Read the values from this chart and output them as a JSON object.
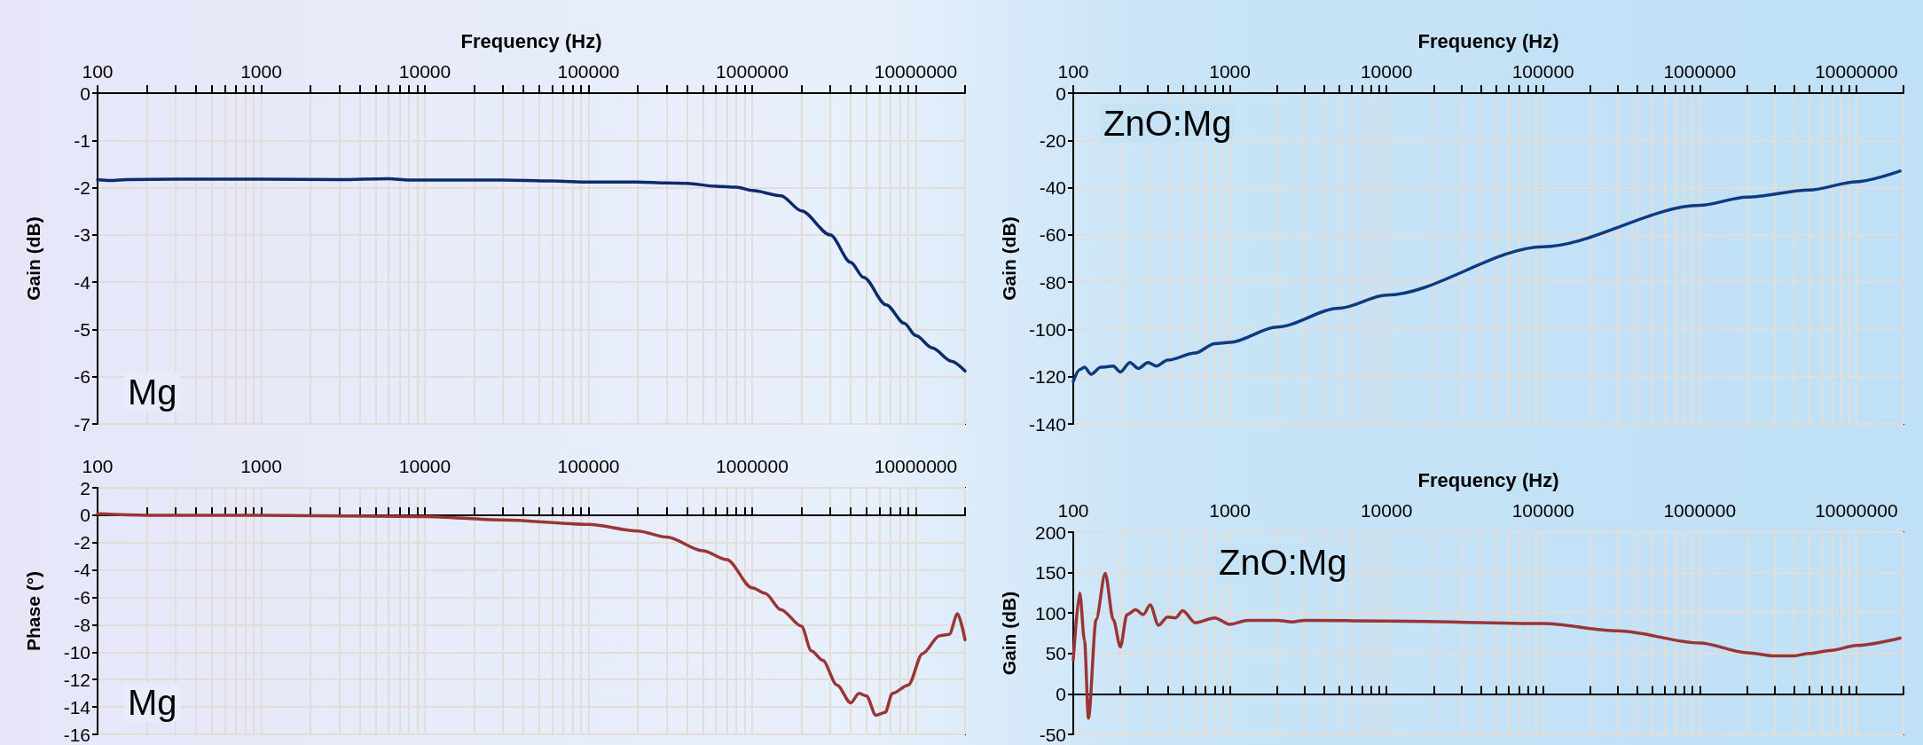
{
  "chart_data": [
    {
      "type": "line",
      "xlabel": "Frequency (Hz)",
      "ylabel": "Gain (dB)",
      "annotations": [
        "Mg"
      ],
      "log": "x",
      "grid": true,
      "xlim": [
        100,
        20000000
      ],
      "xticks": [
        100,
        1000,
        10000,
        100000,
        1000000,
        10000000
      ],
      "ylim": [
        -7,
        0
      ],
      "yticks": [
        -7,
        -6,
        -5,
        -4,
        -3,
        -2,
        -1,
        0
      ],
      "series": [
        {
          "color": "#0d2a6b",
          "x": [
            100,
            120,
            150,
            300,
            500,
            1000,
            3000,
            6000,
            8000,
            30000,
            60000,
            100000,
            200000,
            300000,
            400000,
            600000,
            800000,
            1000000,
            1500000,
            2000000,
            3000000,
            4000000,
            4800000,
            6600000,
            8500000,
            10000000,
            12600000,
            16500000,
            20000000
          ],
          "values": [
            -1.83,
            -1.85,
            -1.83,
            -1.82,
            -1.82,
            -1.82,
            -1.83,
            -1.81,
            -1.84,
            -1.84,
            -1.86,
            -1.88,
            -1.88,
            -1.9,
            -1.91,
            -1.97,
            -1.99,
            -2.06,
            -2.17,
            -2.49,
            -3.0,
            -3.58,
            -3.9,
            -4.48,
            -4.87,
            -5.13,
            -5.39,
            -5.67,
            -5.88
          ]
        }
      ]
    },
    {
      "type": "line",
      "ylabel": "Phase (°)",
      "annotations": [
        "Mg"
      ],
      "log": "x",
      "grid": true,
      "xlim": [
        100,
        20000000
      ],
      "xticks": [
        100,
        1000,
        10000,
        100000,
        1000000,
        10000000
      ],
      "ylim": [
        -16,
        2
      ],
      "yticks": [
        -16,
        -14,
        -12,
        -10,
        -8,
        -6,
        -4,
        -2,
        0,
        2
      ],
      "series": [
        {
          "color": "#9a3535",
          "x": [
            100,
            200,
            1000,
            10000,
            30000,
            100000,
            200000,
            300000,
            500000,
            700000,
            1000000,
            1200000,
            1500000,
            2000000,
            2300000,
            2700000,
            3300000,
            4000000,
            4500000,
            5000000,
            5700000,
            6500000,
            7200000,
            9000000,
            11000000,
            14000000,
            16000000,
            18000000,
            20000000
          ],
          "values": [
            0.1,
            0.0,
            0.0,
            -0.1,
            -0.35,
            -0.67,
            -1.15,
            -1.6,
            -2.6,
            -3.25,
            -5.3,
            -5.7,
            -6.9,
            -8.1,
            -9.9,
            -10.6,
            -12.4,
            -13.7,
            -13.0,
            -13.2,
            -14.6,
            -14.4,
            -13.0,
            -12.4,
            -10.1,
            -8.8,
            -8.7,
            -7.2,
            -9.1
          ]
        }
      ]
    },
    {
      "type": "line",
      "xlabel": "Frequency (Hz)",
      "ylabel": "Gain (dB)",
      "annotations": [
        "ZnO:Mg"
      ],
      "log": "x",
      "grid": true,
      "xlim": [
        100,
        20000000
      ],
      "xticks": [
        100,
        1000,
        10000,
        100000,
        1000000,
        10000000
      ],
      "ylim": [
        -140,
        0
      ],
      "yticks": [
        -140,
        -120,
        -100,
        -80,
        -60,
        -40,
        -20,
        0
      ],
      "series": [
        {
          "color": "#0d3a80",
          "x": [
            100,
            110,
            118,
            130,
            150,
            180,
            200,
            230,
            260,
            300,
            340,
            400,
            600,
            800,
            1000,
            2000,
            5000,
            10000,
            100000,
            1000000,
            2000000,
            5000000,
            10000000,
            19000000
          ],
          "values": [
            -122,
            -117,
            -116,
            -119,
            -116,
            -115.5,
            -118,
            -114,
            -116.5,
            -114,
            -115.5,
            -113,
            -110,
            -106,
            -105.5,
            -99,
            -91,
            -85.5,
            -65,
            -47.5,
            -44,
            -41,
            -37.5,
            -33
          ]
        }
      ]
    },
    {
      "type": "line",
      "xlabel": "Frequency (Hz)",
      "ylabel": "Gain (dB)",
      "annotations": [
        "ZnO:Mg"
      ],
      "log": "x",
      "grid": true,
      "xlim": [
        100,
        20000000
      ],
      "xticks": [
        100,
        1000,
        10000,
        100000,
        1000000,
        10000000
      ],
      "ylim": [
        -50,
        200
      ],
      "yticks": [
        -50,
        0,
        50,
        100,
        150,
        200
      ],
      "series": [
        {
          "color": "#9a3535",
          "x": [
            100,
            110,
            118,
            125,
            140,
            160,
            180,
            200,
            220,
            250,
            280,
            310,
            350,
            400,
            450,
            500,
            600,
            800,
            1000,
            1300,
            2000,
            2500,
            3000,
            10000,
            100000,
            300000,
            1000000,
            2000000,
            3000000,
            4000000,
            5000000,
            7000000,
            10000000,
            19000000
          ],
          "values": [
            42,
            125,
            66,
            -30,
            92,
            149,
            92,
            58,
            98,
            104,
            98,
            110,
            85,
            95,
            94,
            103,
            88,
            94,
            86,
            91,
            91,
            89,
            91,
            90,
            87,
            78,
            63,
            51,
            47,
            47,
            50,
            54,
            60,
            69
          ]
        }
      ]
    }
  ]
}
